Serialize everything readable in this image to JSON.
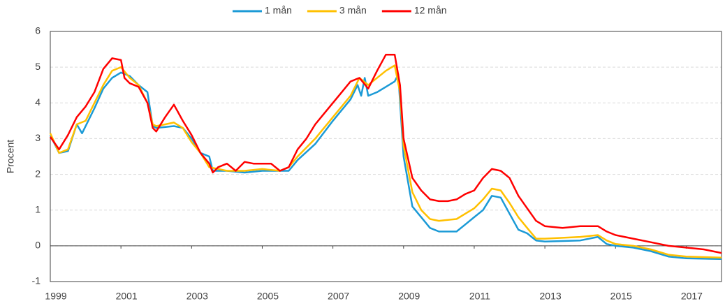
{
  "chart_data": {
    "type": "line",
    "y_label": "Procent",
    "xlim": [
      1999,
      2018
    ],
    "xticks": [
      1999,
      2001,
      2003,
      2005,
      2007,
      2009,
      2011,
      2013,
      2015,
      2017
    ],
    "ylim": [
      -1,
      6
    ],
    "yticks": [
      -1,
      0,
      1,
      2,
      3,
      4,
      5,
      6
    ],
    "grid": true,
    "legend": "top",
    "series": [
      {
        "name": "1 mån",
        "color": "#1b9ad6",
        "x": [
          1999.0,
          1999.25,
          1999.5,
          1999.75,
          1999.9,
          2000.25,
          2000.5,
          2000.75,
          2001.0,
          2001.25,
          2001.5,
          2001.75,
          2001.9,
          2002.0,
          2002.5,
          2002.75,
          2003.0,
          2003.25,
          2003.5,
          2003.6,
          2004.0,
          2004.5,
          2005.0,
          2005.5,
          2005.75,
          2006.0,
          2006.5,
          2007.0,
          2007.5,
          2007.7,
          2007.8,
          2007.9,
          2008.0,
          2008.25,
          2008.5,
          2008.75,
          2008.85,
          2009.0,
          2009.25,
          2009.5,
          2009.75,
          2010.0,
          2010.5,
          2010.75,
          2011.0,
          2011.25,
          2011.5,
          2011.75,
          2012.0,
          2012.25,
          2012.5,
          2012.75,
          2013.0,
          2014.0,
          2014.5,
          2014.75,
          2015.0,
          2015.5,
          2016.0,
          2016.5,
          2017.0,
          2018.0
        ],
        "values": [
          3.1,
          2.6,
          2.65,
          3.4,
          3.15,
          3.85,
          4.4,
          4.7,
          4.85,
          4.75,
          4.5,
          4.3,
          3.35,
          3.3,
          3.35,
          3.3,
          3.0,
          2.6,
          2.5,
          2.1,
          2.1,
          2.05,
          2.1,
          2.1,
          2.1,
          2.4,
          2.85,
          3.5,
          4.1,
          4.5,
          4.2,
          4.7,
          4.2,
          4.3,
          4.45,
          4.6,
          4.8,
          2.5,
          1.1,
          0.8,
          0.5,
          0.4,
          0.4,
          0.6,
          0.8,
          1.0,
          1.4,
          1.35,
          0.9,
          0.45,
          0.35,
          0.15,
          0.12,
          0.15,
          0.25,
          0.05,
          0.0,
          -0.05,
          -0.15,
          -0.3,
          -0.35,
          -0.37
        ]
      },
      {
        "name": "3 mån",
        "color": "#ffc000",
        "x": [
          1999.0,
          1999.25,
          1999.5,
          1999.75,
          2000.0,
          2000.25,
          2000.5,
          2000.75,
          2001.0,
          2001.25,
          2001.5,
          2001.75,
          2001.9,
          2002.0,
          2002.25,
          2002.5,
          2002.75,
          2003.0,
          2003.25,
          2003.5,
          2003.75,
          2004.0,
          2004.5,
          2005.0,
          2005.5,
          2005.75,
          2006.0,
          2006.5,
          2007.0,
          2007.5,
          2007.75,
          2008.0,
          2008.5,
          2008.75,
          2008.9,
          2009.0,
          2009.25,
          2009.5,
          2009.75,
          2010.0,
          2010.5,
          2010.75,
          2011.0,
          2011.25,
          2011.5,
          2011.75,
          2012.0,
          2012.25,
          2012.5,
          2012.75,
          2013.0,
          2014.0,
          2014.5,
          2014.75,
          2015.0,
          2015.5,
          2016.0,
          2016.5,
          2017.0,
          2018.0
        ],
        "values": [
          3.15,
          2.6,
          2.7,
          3.4,
          3.5,
          4.0,
          4.5,
          4.9,
          5.0,
          4.7,
          4.5,
          4.0,
          3.4,
          3.35,
          3.4,
          3.45,
          3.3,
          2.9,
          2.6,
          2.2,
          2.15,
          2.1,
          2.1,
          2.15,
          2.1,
          2.2,
          2.5,
          3.0,
          3.6,
          4.2,
          4.7,
          4.5,
          4.9,
          5.05,
          4.3,
          2.8,
          1.5,
          1.0,
          0.75,
          0.7,
          0.75,
          0.9,
          1.05,
          1.3,
          1.6,
          1.55,
          1.2,
          0.8,
          0.5,
          0.2,
          0.2,
          0.25,
          0.3,
          0.15,
          0.05,
          0.0,
          -0.1,
          -0.25,
          -0.3,
          -0.33
        ]
      },
      {
        "name": "12 mån",
        "color": "#ff0000",
        "x": [
          1999.0,
          1999.25,
          1999.5,
          1999.75,
          2000.0,
          2000.25,
          2000.5,
          2000.75,
          2001.0,
          2001.1,
          2001.25,
          2001.5,
          2001.75,
          2001.9,
          2002.0,
          2002.25,
          2002.5,
          2002.75,
          2003.0,
          2003.25,
          2003.5,
          2003.6,
          2003.75,
          2004.0,
          2004.25,
          2004.5,
          2004.75,
          2005.0,
          2005.25,
          2005.5,
          2005.75,
          2006.0,
          2006.25,
          2006.5,
          2006.75,
          2007.0,
          2007.25,
          2007.5,
          2007.75,
          2008.0,
          2008.25,
          2008.5,
          2008.75,
          2008.9,
          2009.0,
          2009.25,
          2009.5,
          2009.75,
          2010.0,
          2010.25,
          2010.5,
          2010.75,
          2011.0,
          2011.25,
          2011.5,
          2011.75,
          2012.0,
          2012.25,
          2012.5,
          2012.75,
          2013.0,
          2013.5,
          2014.0,
          2014.5,
          2014.75,
          2015.0,
          2015.5,
          2016.0,
          2016.5,
          2017.0,
          2017.5,
          2018.0
        ],
        "values": [
          3.05,
          2.7,
          3.1,
          3.6,
          3.9,
          4.3,
          4.95,
          5.25,
          5.2,
          4.7,
          4.55,
          4.45,
          4.0,
          3.3,
          3.2,
          3.6,
          3.95,
          3.5,
          3.1,
          2.6,
          2.3,
          2.05,
          2.2,
          2.3,
          2.1,
          2.35,
          2.3,
          2.3,
          2.3,
          2.1,
          2.2,
          2.7,
          3.0,
          3.4,
          3.7,
          4.0,
          4.3,
          4.6,
          4.7,
          4.4,
          4.9,
          5.35,
          5.35,
          4.5,
          3.0,
          1.9,
          1.55,
          1.3,
          1.25,
          1.25,
          1.3,
          1.45,
          1.55,
          1.9,
          2.15,
          2.1,
          1.9,
          1.4,
          1.05,
          0.7,
          0.55,
          0.5,
          0.55,
          0.55,
          0.4,
          0.3,
          0.2,
          0.1,
          0.0,
          -0.05,
          -0.1,
          -0.2
        ]
      }
    ]
  }
}
